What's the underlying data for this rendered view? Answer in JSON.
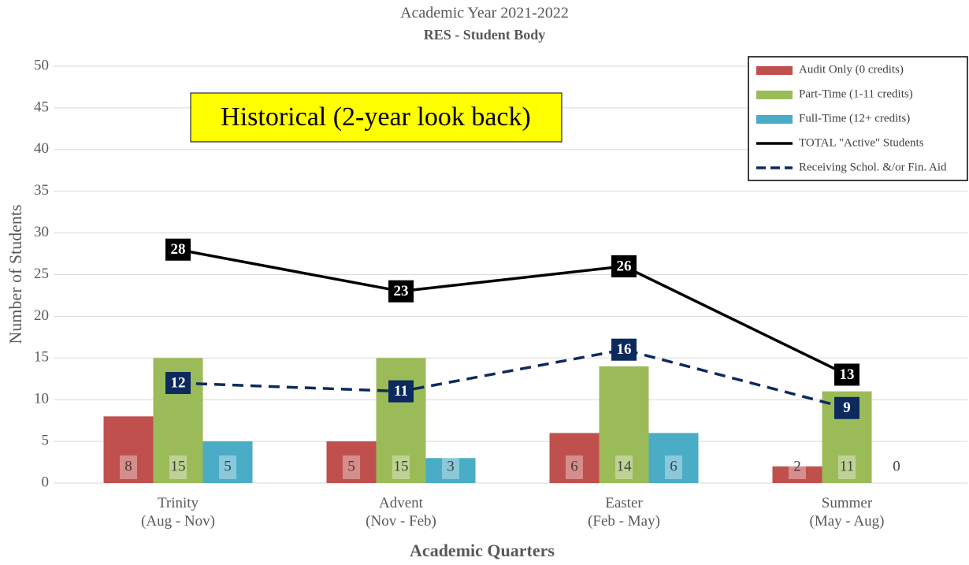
{
  "chart_data": {
    "type": "bar",
    "title": "Academic Year 2021-2022",
    "subtitle": "RES - Student Body",
    "annotation": "Historical (2-year look back)",
    "x_label": "Academic Quarters",
    "y_label": "Number of Students",
    "categories": [
      "Trinity\n(Aug - Nov)",
      "Advent\n(Nov - Feb)",
      "Easter\n(Feb - May)",
      "Summer\n(May - Aug)"
    ],
    "series": [
      {
        "name": "Audit Only (0 credits)",
        "type": "bar",
        "color": "#c0504d",
        "values": [
          8,
          5,
          6,
          2
        ]
      },
      {
        "name": "Part-Time (1-11 credits)",
        "type": "bar",
        "color": "#9bbb59",
        "values": [
          15,
          15,
          14,
          11
        ]
      },
      {
        "name": "Full-Time (12+ credits)",
        "type": "bar",
        "color": "#4bacc6",
        "values": [
          5,
          3,
          6,
          0
        ]
      },
      {
        "name": "TOTAL \"Active\" Students",
        "type": "line",
        "color": "#000000",
        "values": [
          28,
          23,
          26,
          13
        ]
      },
      {
        "name": "Receiving Schol. &/or Fin. Aid",
        "type": "line",
        "dashed": true,
        "color": "#0d2a5e",
        "values": [
          12,
          11,
          16,
          9
        ]
      }
    ],
    "ylim": [
      0,
      50
    ],
    "yticks": [
      0,
      5,
      10,
      15,
      20,
      25,
      30,
      35,
      40,
      45,
      50
    ],
    "grid": true,
    "legend": "top-right"
  }
}
